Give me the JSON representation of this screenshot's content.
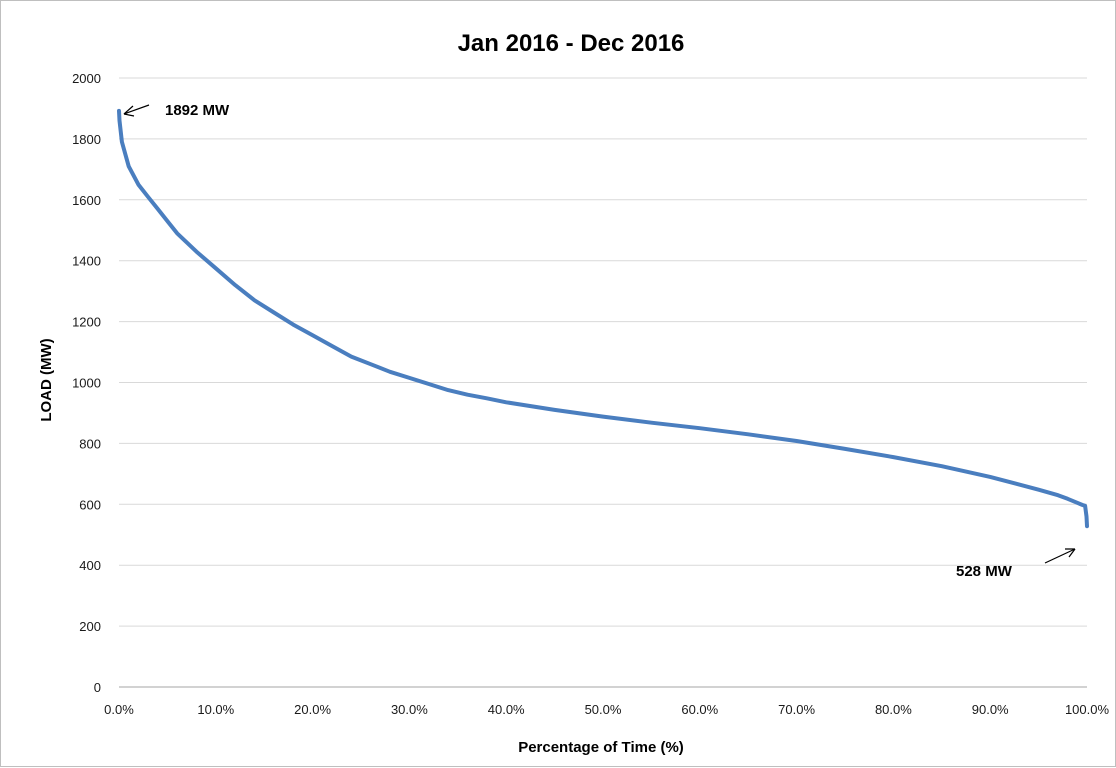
{
  "chart_data": {
    "type": "line",
    "title": "Jan 2016 - Dec 2016",
    "xlabel": "Percentage of Time (%)",
    "ylabel": "LOAD (MW)",
    "xlim": [
      0,
      100
    ],
    "ylim": [
      0,
      2000
    ],
    "x_ticks": [
      "0.0%",
      "10.0%",
      "20.0%",
      "30.0%",
      "40.0%",
      "50.0%",
      "60.0%",
      "70.0%",
      "80.0%",
      "90.0%",
      "100.0%"
    ],
    "y_ticks": [
      "0",
      "200",
      "400",
      "600",
      "800",
      "1000",
      "1200",
      "1400",
      "1600",
      "1800",
      "2000"
    ],
    "grid": true,
    "line_color": "#4a7ebf",
    "series": [
      {
        "x": [
          0,
          0.05,
          0.3,
          1,
          2,
          3,
          4,
          5,
          6,
          8,
          10,
          12,
          14,
          16,
          18,
          20,
          22,
          24,
          26,
          28,
          30,
          32,
          34,
          36,
          38,
          40,
          45,
          50,
          55,
          60,
          65,
          70,
          75,
          80,
          85,
          90,
          95,
          97,
          98,
          99,
          99.5,
          99.8,
          99.95,
          100
        ],
        "y": [
          1892,
          1860,
          1790,
          1710,
          1650,
          1610,
          1570,
          1530,
          1490,
          1430,
          1375,
          1320,
          1270,
          1230,
          1190,
          1155,
          1120,
          1085,
          1060,
          1035,
          1015,
          995,
          975,
          960,
          948,
          935,
          910,
          888,
          868,
          850,
          830,
          808,
          782,
          755,
          725,
          690,
          648,
          630,
          618,
          605,
          598,
          595,
          560,
          528
        ]
      }
    ],
    "annotations": [
      {
        "text": "1892 MW",
        "x": 0,
        "y": 1892
      },
      {
        "text": "528 MW",
        "x": 100,
        "y": 528
      }
    ]
  }
}
